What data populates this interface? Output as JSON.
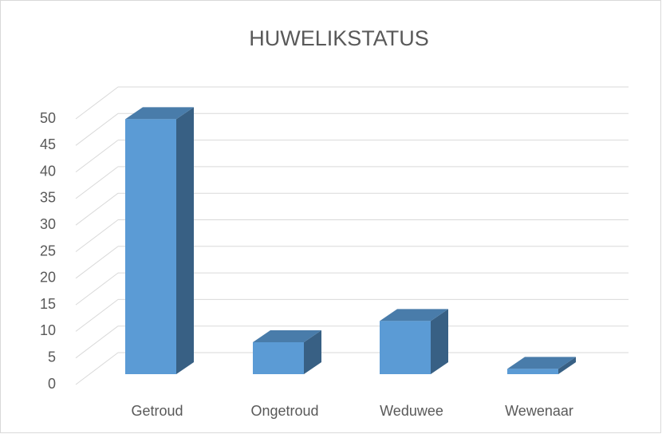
{
  "chart_data": {
    "type": "bar3d",
    "title": "HUWELIKSTATUS",
    "categories": [
      "Getroud",
      "Ongetroud",
      "Weduwee",
      "Wewenaar"
    ],
    "values": [
      48,
      6,
      10,
      1
    ],
    "color": "#5b9bd5",
    "ylim": [
      0,
      50
    ],
    "yticks": [
      0,
      5,
      10,
      15,
      20,
      25,
      30,
      35,
      40,
      45,
      50
    ],
    "grid": true
  }
}
